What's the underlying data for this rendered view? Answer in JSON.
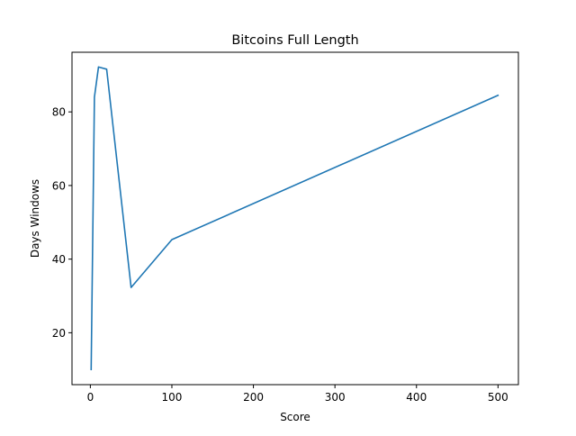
{
  "chart_data": {
    "type": "line",
    "title": "Bitcoins Full Length",
    "xlabel": "Score",
    "ylabel": "Days Windows",
    "xlim": [
      -22.5,
      525
    ],
    "ylim": [
      5.9,
      96.2
    ],
    "xticks": [
      0,
      100,
      200,
      300,
      400,
      500
    ],
    "yticks": [
      20,
      40,
      60,
      80
    ],
    "grid": false,
    "series": [
      {
        "color": "#1f77b4",
        "x": [
          1,
          5,
          10,
          20,
          50,
          100,
          500
        ],
        "y": [
          10,
          84,
          92.2,
          91.6,
          32.3,
          45.3,
          84.5
        ]
      }
    ]
  }
}
